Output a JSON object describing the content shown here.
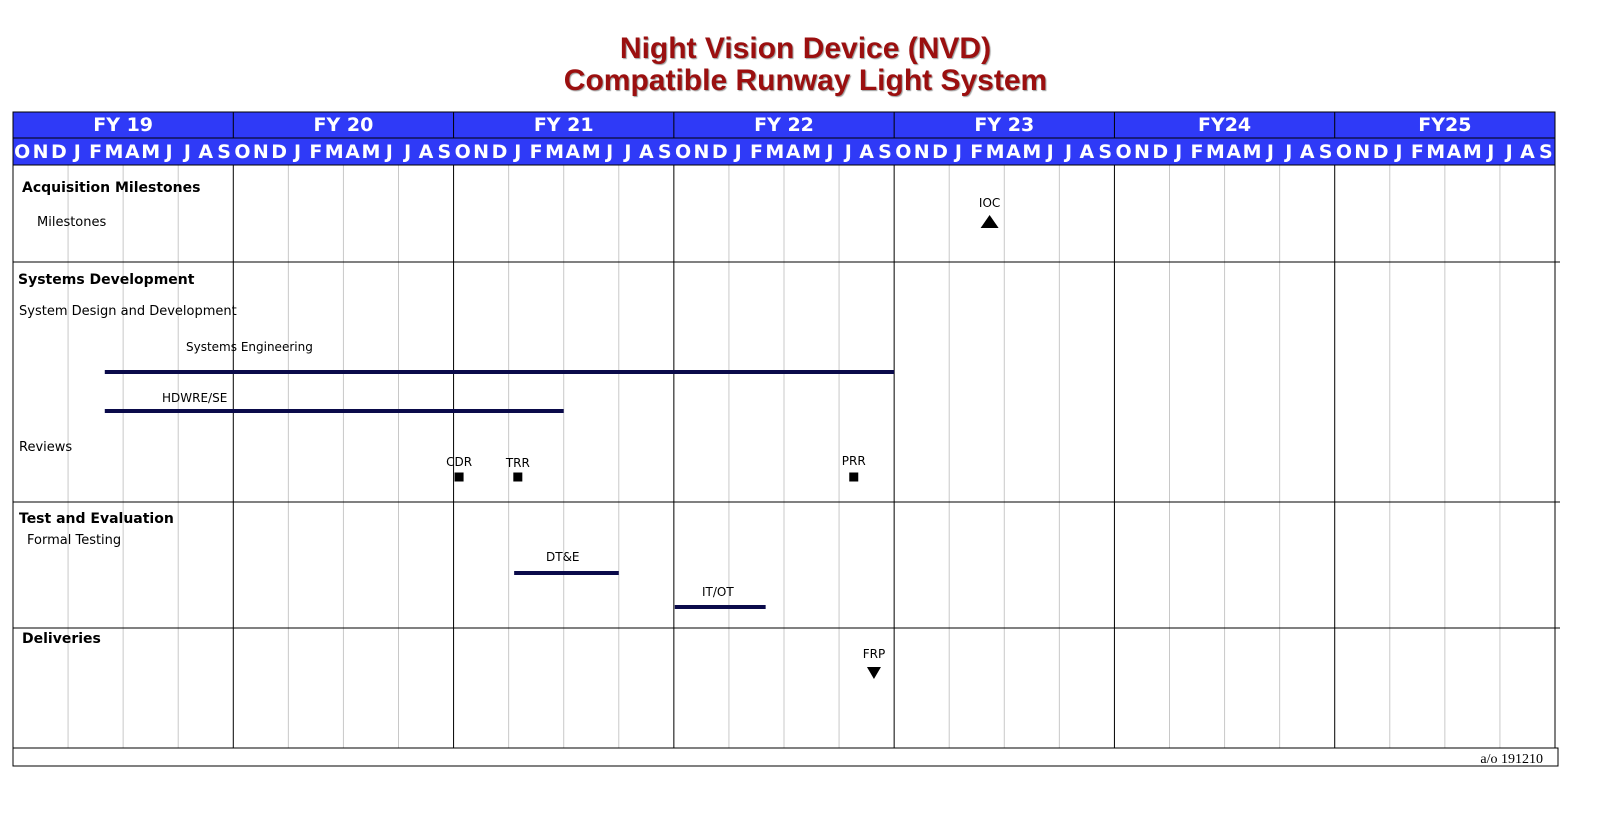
{
  "title": {
    "line1": "Night Vision Device (NVD)",
    "line2": "Compatible Runway Light System"
  },
  "chart_data": {
    "type": "gantt",
    "fiscal_years": [
      "FY 19",
      "FY 20",
      "FY 21",
      "FY 22",
      "FY 23",
      "FY24",
      "FY25"
    ],
    "months": [
      "O",
      "N",
      "D",
      "J",
      "F",
      "M",
      "A",
      "M",
      "J",
      "J",
      "A",
      "S"
    ],
    "sections": [
      {
        "title": "Acquisition Milestones",
        "subsections": [
          {
            "label": "Milestones"
          }
        ]
      },
      {
        "title": "Systems Development",
        "subsections": [
          {
            "label": "System Design and Development"
          },
          {
            "label": "Reviews"
          }
        ]
      },
      {
        "title": "Test and Evaluation",
        "subsections": [
          {
            "label": "Formal Testing"
          }
        ]
      },
      {
        "title": "Deliveries",
        "subsections": []
      }
    ],
    "bars": [
      {
        "label": "Systems Engineering",
        "start": "FY 19 M",
        "end": "FY 22 S"
      },
      {
        "label": "HDWRE/SE",
        "start": "FY 19 M",
        "end": "FY 21 M"
      },
      {
        "label": "DT&E",
        "start": "FY 21 F",
        "end": "FY 21 J"
      },
      {
        "label": "IT/OT",
        "start": "FY 22 O",
        "end": "FY 22 M"
      }
    ],
    "milestones": [
      {
        "label": "IOC",
        "date": "FY 23 J",
        "symbol": "triangle-up"
      },
      {
        "label": "CDR",
        "date": "FY 21 O",
        "symbol": "square"
      },
      {
        "label": "TRR",
        "date": "FY 21 F",
        "symbol": "square"
      },
      {
        "label": "PRR",
        "date": "FY 22 J",
        "symbol": "square"
      },
      {
        "label": "FRP",
        "date": "FY 22 A",
        "symbol": "triangle-down"
      }
    ],
    "as_of": "a/o 191210"
  },
  "colors": {
    "header_bg": "#2f3af7",
    "bar": "#0a0a4a",
    "title": "#9b0f0f",
    "grid": "#c8c8c8"
  }
}
